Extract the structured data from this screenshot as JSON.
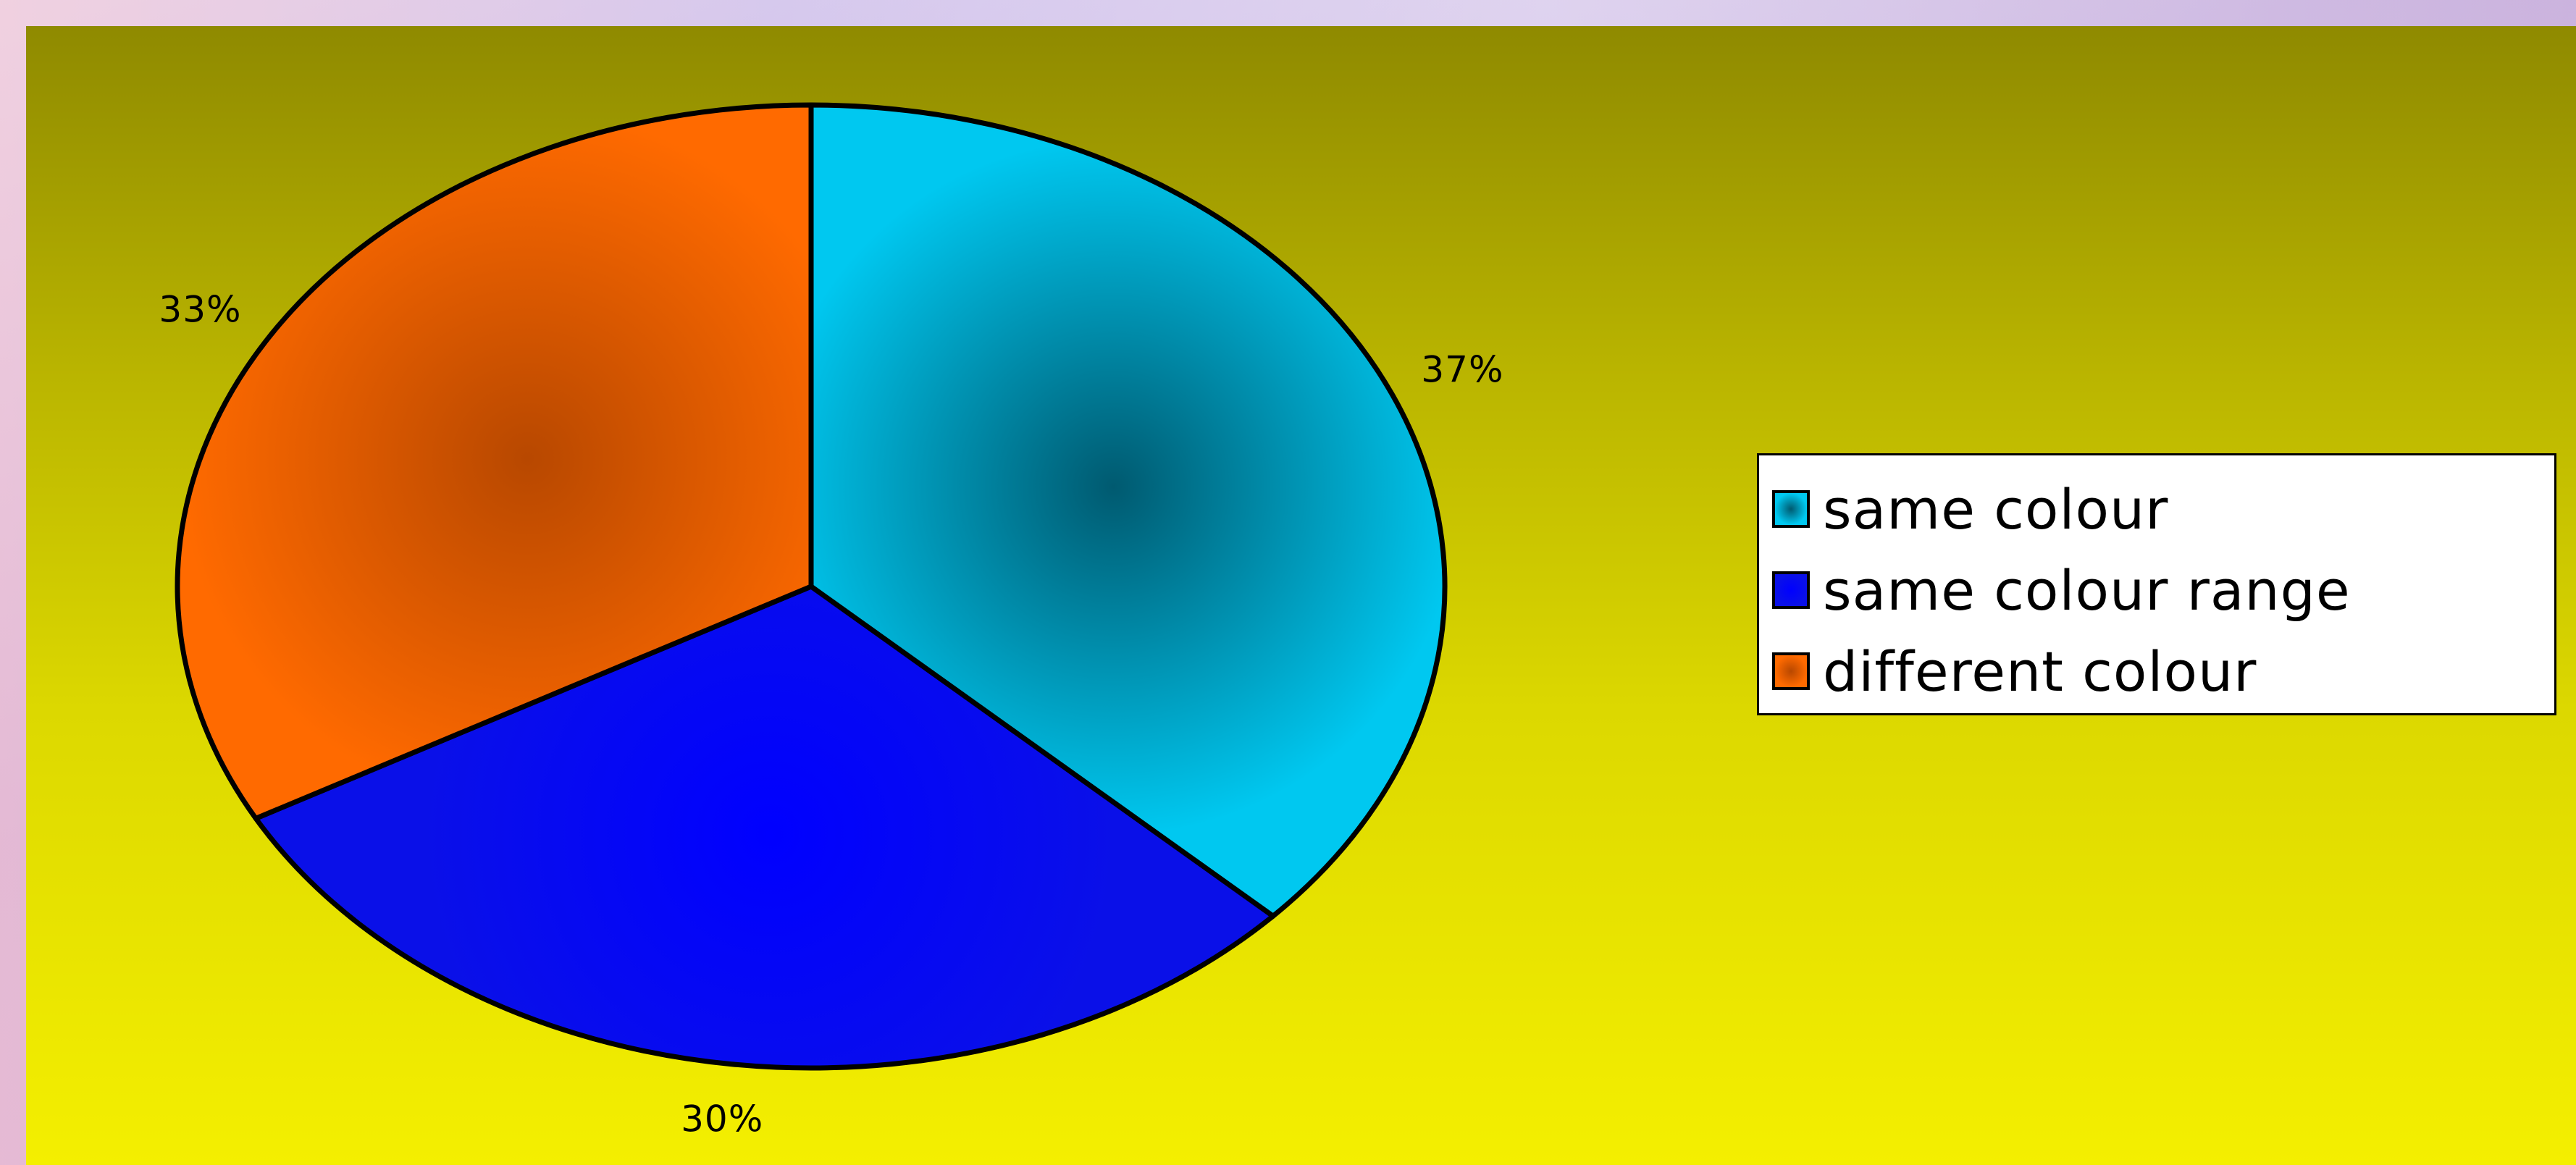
{
  "chart_data": {
    "type": "pie",
    "slices": [
      {
        "label": "same colour",
        "value": 37,
        "value_label": "37%",
        "color": "#00c8f0",
        "center_color": "#005a70"
      },
      {
        "label": "same colour range",
        "value": 30,
        "value_label": "30%",
        "color": "#0a10e8",
        "center_color": "#0000ff"
      },
      {
        "label": "different colour",
        "value": 33,
        "value_label": "33%",
        "color": "#ff6a00",
        "center_color": "#b84800"
      }
    ],
    "legend_position": "right",
    "plot_background": [
      "#8f8a00",
      "#f4ef00"
    ]
  }
}
